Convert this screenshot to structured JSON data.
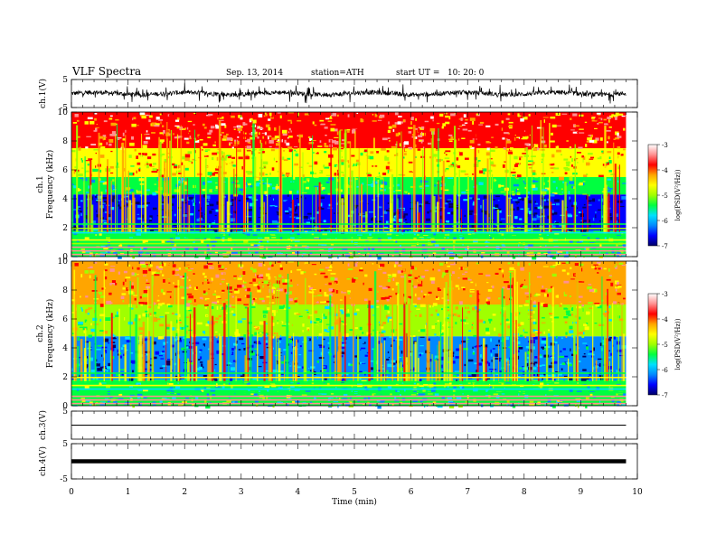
{
  "header": {
    "title": "VLF Spectra",
    "date": "Sep. 13, 2014",
    "station": "station=ATH",
    "start": "start UT =   10: 20: 0"
  },
  "colorbar": {
    "label": "log(PSD(V²/Hz))",
    "ticks": [
      "-3",
      "-4",
      "-5",
      "-6",
      "-7"
    ],
    "colors": [
      "#000066",
      "#0000ff",
      "#0088ff",
      "#00e0ff",
      "#00ff40",
      "#a0ff00",
      "#ffff00",
      "#ffa500",
      "#ff0000",
      "#ff9090",
      "#ffffff"
    ]
  },
  "chart_data": [
    {
      "type": "line",
      "name": "ch1-waveform",
      "ylabel": "ch.1(V)",
      "ylim": [
        -5,
        5
      ],
      "yticks": [
        "5",
        "-5"
      ],
      "xlim": [
        0,
        10
      ],
      "description_level": "noisy waveform centred near 0 V with spikes to about ±3 V"
    },
    {
      "type": "heatmap",
      "name": "ch1-spectrogram",
      "ylabel": "ch.1 Frequency (kHz)",
      "ylim": [
        0,
        10
      ],
      "yticks": [
        "0",
        "2",
        "4",
        "6",
        "8",
        "10"
      ],
      "xlim": [
        0,
        10
      ],
      "zlim": [
        -7,
        -3
      ],
      "bands_khz": [
        {
          "from": 0,
          "to": 1.8,
          "level": -5.5
        },
        {
          "from": 1.8,
          "to": 4.3,
          "level": -6.6
        },
        {
          "from": 4.3,
          "to": 5.5,
          "level": -5.4
        },
        {
          "from": 5.5,
          "to": 7.5,
          "level": -4.5
        },
        {
          "from": 7.5,
          "to": 10,
          "level": -3.9
        }
      ]
    },
    {
      "type": "heatmap",
      "name": "ch2-spectrogram",
      "ylabel": "ch.2 Frequency (kHz)",
      "ylim": [
        0,
        10
      ],
      "yticks": [
        "0",
        "2",
        "4",
        "6",
        "8",
        "10"
      ],
      "xlim": [
        0,
        10
      ],
      "zlim": [
        -7,
        -3
      ],
      "bands_khz": [
        {
          "from": 0,
          "to": 1.8,
          "level": -5.5
        },
        {
          "from": 1.8,
          "to": 4.8,
          "level": -6.3
        },
        {
          "from": 4.8,
          "to": 7,
          "level": -4.9
        },
        {
          "from": 7,
          "to": 10,
          "level": -4.2
        }
      ]
    },
    {
      "type": "line",
      "name": "ch3-waveform",
      "ylabel": "ch.3(V)",
      "ylim": [
        -5,
        5
      ],
      "yticks": [
        "5"
      ],
      "xlim": [
        0,
        10
      ],
      "level": 0
    },
    {
      "type": "line",
      "name": "ch4-waveform",
      "ylabel": "ch.4(V)",
      "ylim": [
        -5,
        5
      ],
      "yticks": [
        "5",
        "-5"
      ],
      "xlim": [
        0,
        10
      ],
      "level": 0
    }
  ],
  "xaxis": {
    "label": "Time  (min)",
    "range": [
      0,
      10
    ],
    "ticks": [
      "0",
      "1",
      "2",
      "3",
      "4",
      "5",
      "6",
      "7",
      "8",
      "9",
      "10"
    ],
    "data_end": 9.8
  }
}
